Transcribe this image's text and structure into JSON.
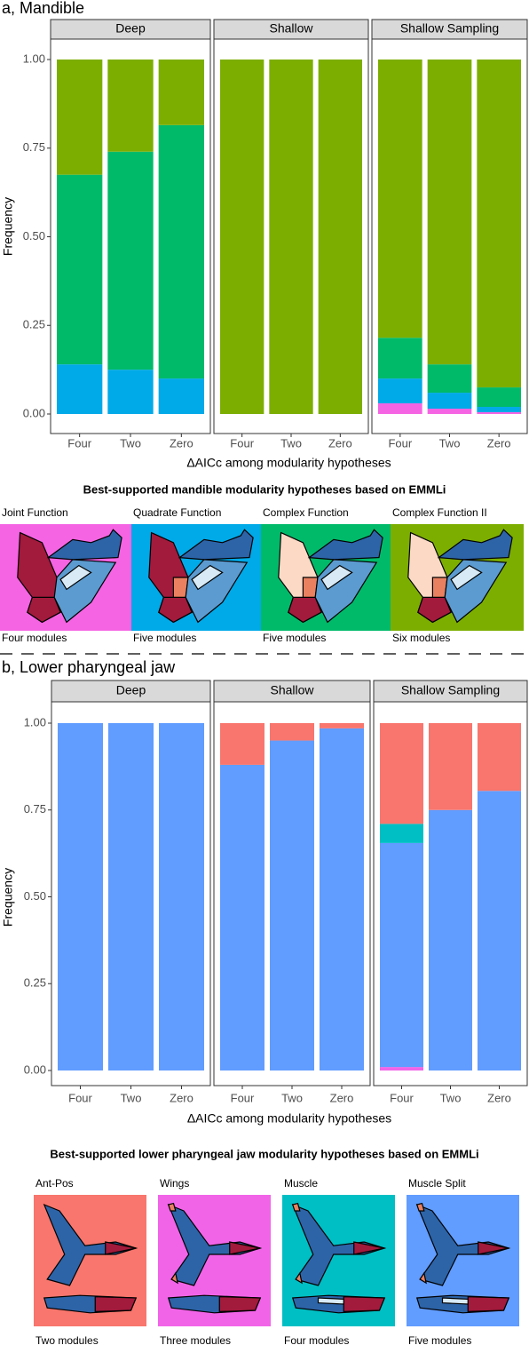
{
  "chart_data": [
    {
      "type": "bar",
      "stacked": true,
      "title": "a, Mandible",
      "facets": [
        "Deep",
        "Shallow",
        "Shallow Sampling"
      ],
      "categories": [
        "Four",
        "Two",
        "Zero"
      ],
      "xlabel": "ΔAICc among modularity hypotheses",
      "ylabel": "Frequency",
      "ylim": [
        0,
        1
      ],
      "yticks": [
        {
          "value": 0,
          "label": "0.00"
        },
        {
          "value": 0.25,
          "label": "0.25"
        },
        {
          "value": 0.5,
          "label": "0.50"
        },
        {
          "value": 0.75,
          "label": "0.75"
        },
        {
          "value": 1,
          "label": "1.00"
        }
      ],
      "grid": false,
      "legend_title": "Best-supported mandible modularity hypotheses based on EMMLi",
      "series": [
        {
          "name": "Joint Function",
          "caption": "Four modules",
          "color": "#f564e3",
          "values": [
            [
              0,
              0,
              0
            ],
            [
              0,
              0,
              0
            ],
            [
              0.03,
              0.015,
              0.005
            ]
          ]
        },
        {
          "name": "Quadrate Function",
          "caption": "Five modules",
          "color": "#00a9e8",
          "values": [
            [
              0.14,
              0.125,
              0.1
            ],
            [
              0,
              0,
              0
            ],
            [
              0.07,
              0.045,
              0.015
            ]
          ]
        },
        {
          "name": "Complex Function",
          "caption": "Five modules",
          "color": "#00ba6a",
          "values": [
            [
              0.535,
              0.615,
              0.715
            ],
            [
              0,
              0,
              0
            ],
            [
              0.115,
              0.08,
              0.055
            ]
          ]
        },
        {
          "name": "Complex Function II",
          "caption": "Six modules",
          "color": "#7cae00",
          "values": [
            [
              0.325,
              0.26,
              0.185
            ],
            [
              1,
              1,
              1
            ],
            [
              0.785,
              0.86,
              0.925
            ]
          ]
        }
      ]
    },
    {
      "type": "bar",
      "stacked": true,
      "title": "b, Lower pharyngeal jaw",
      "facets": [
        "Deep",
        "Shallow",
        "Shallow Sampling"
      ],
      "categories": [
        "Four",
        "Two",
        "Zero"
      ],
      "xlabel": "ΔAICc among modularity hypotheses",
      "ylabel": "Frequency",
      "ylim": [
        0,
        1
      ],
      "yticks": [
        {
          "value": 0,
          "label": "0.00"
        },
        {
          "value": 0.25,
          "label": "0.25"
        },
        {
          "value": 0.5,
          "label": "0.50"
        },
        {
          "value": 0.75,
          "label": "0.75"
        },
        {
          "value": 1,
          "label": "1.00"
        }
      ],
      "grid": false,
      "legend_title": "Best-supported lower pharyngeal jaw modularity hypotheses based on EMMLi",
      "series": [
        {
          "name": "Wings",
          "caption": "Three modules",
          "color": "#f164e8",
          "values": [
            [
              0,
              0,
              0
            ],
            [
              0,
              0,
              0
            ],
            [
              0.01,
              0,
              0
            ]
          ]
        },
        {
          "name": "Muscle Split",
          "caption": "Five modules",
          "color": "#619cff",
          "values": [
            [
              1,
              1,
              1
            ],
            [
              0.88,
              0.95,
              0.985
            ],
            [
              0.645,
              0.75,
              0.805
            ]
          ]
        },
        {
          "name": "Muscle",
          "caption": "Four modules",
          "color": "#00bfc4",
          "values": [
            [
              0,
              0,
              0
            ],
            [
              0,
              0,
              0
            ],
            [
              0.055,
              0,
              0
            ]
          ]
        },
        {
          "name": "Ant-Pos",
          "caption": "Two modules",
          "color": "#f8766d",
          "values": [
            [
              0,
              0,
              0
            ],
            [
              0.12,
              0.05,
              0.015
            ],
            [
              0.29,
              0.25,
              0.195
            ]
          ]
        }
      ]
    }
  ]
}
